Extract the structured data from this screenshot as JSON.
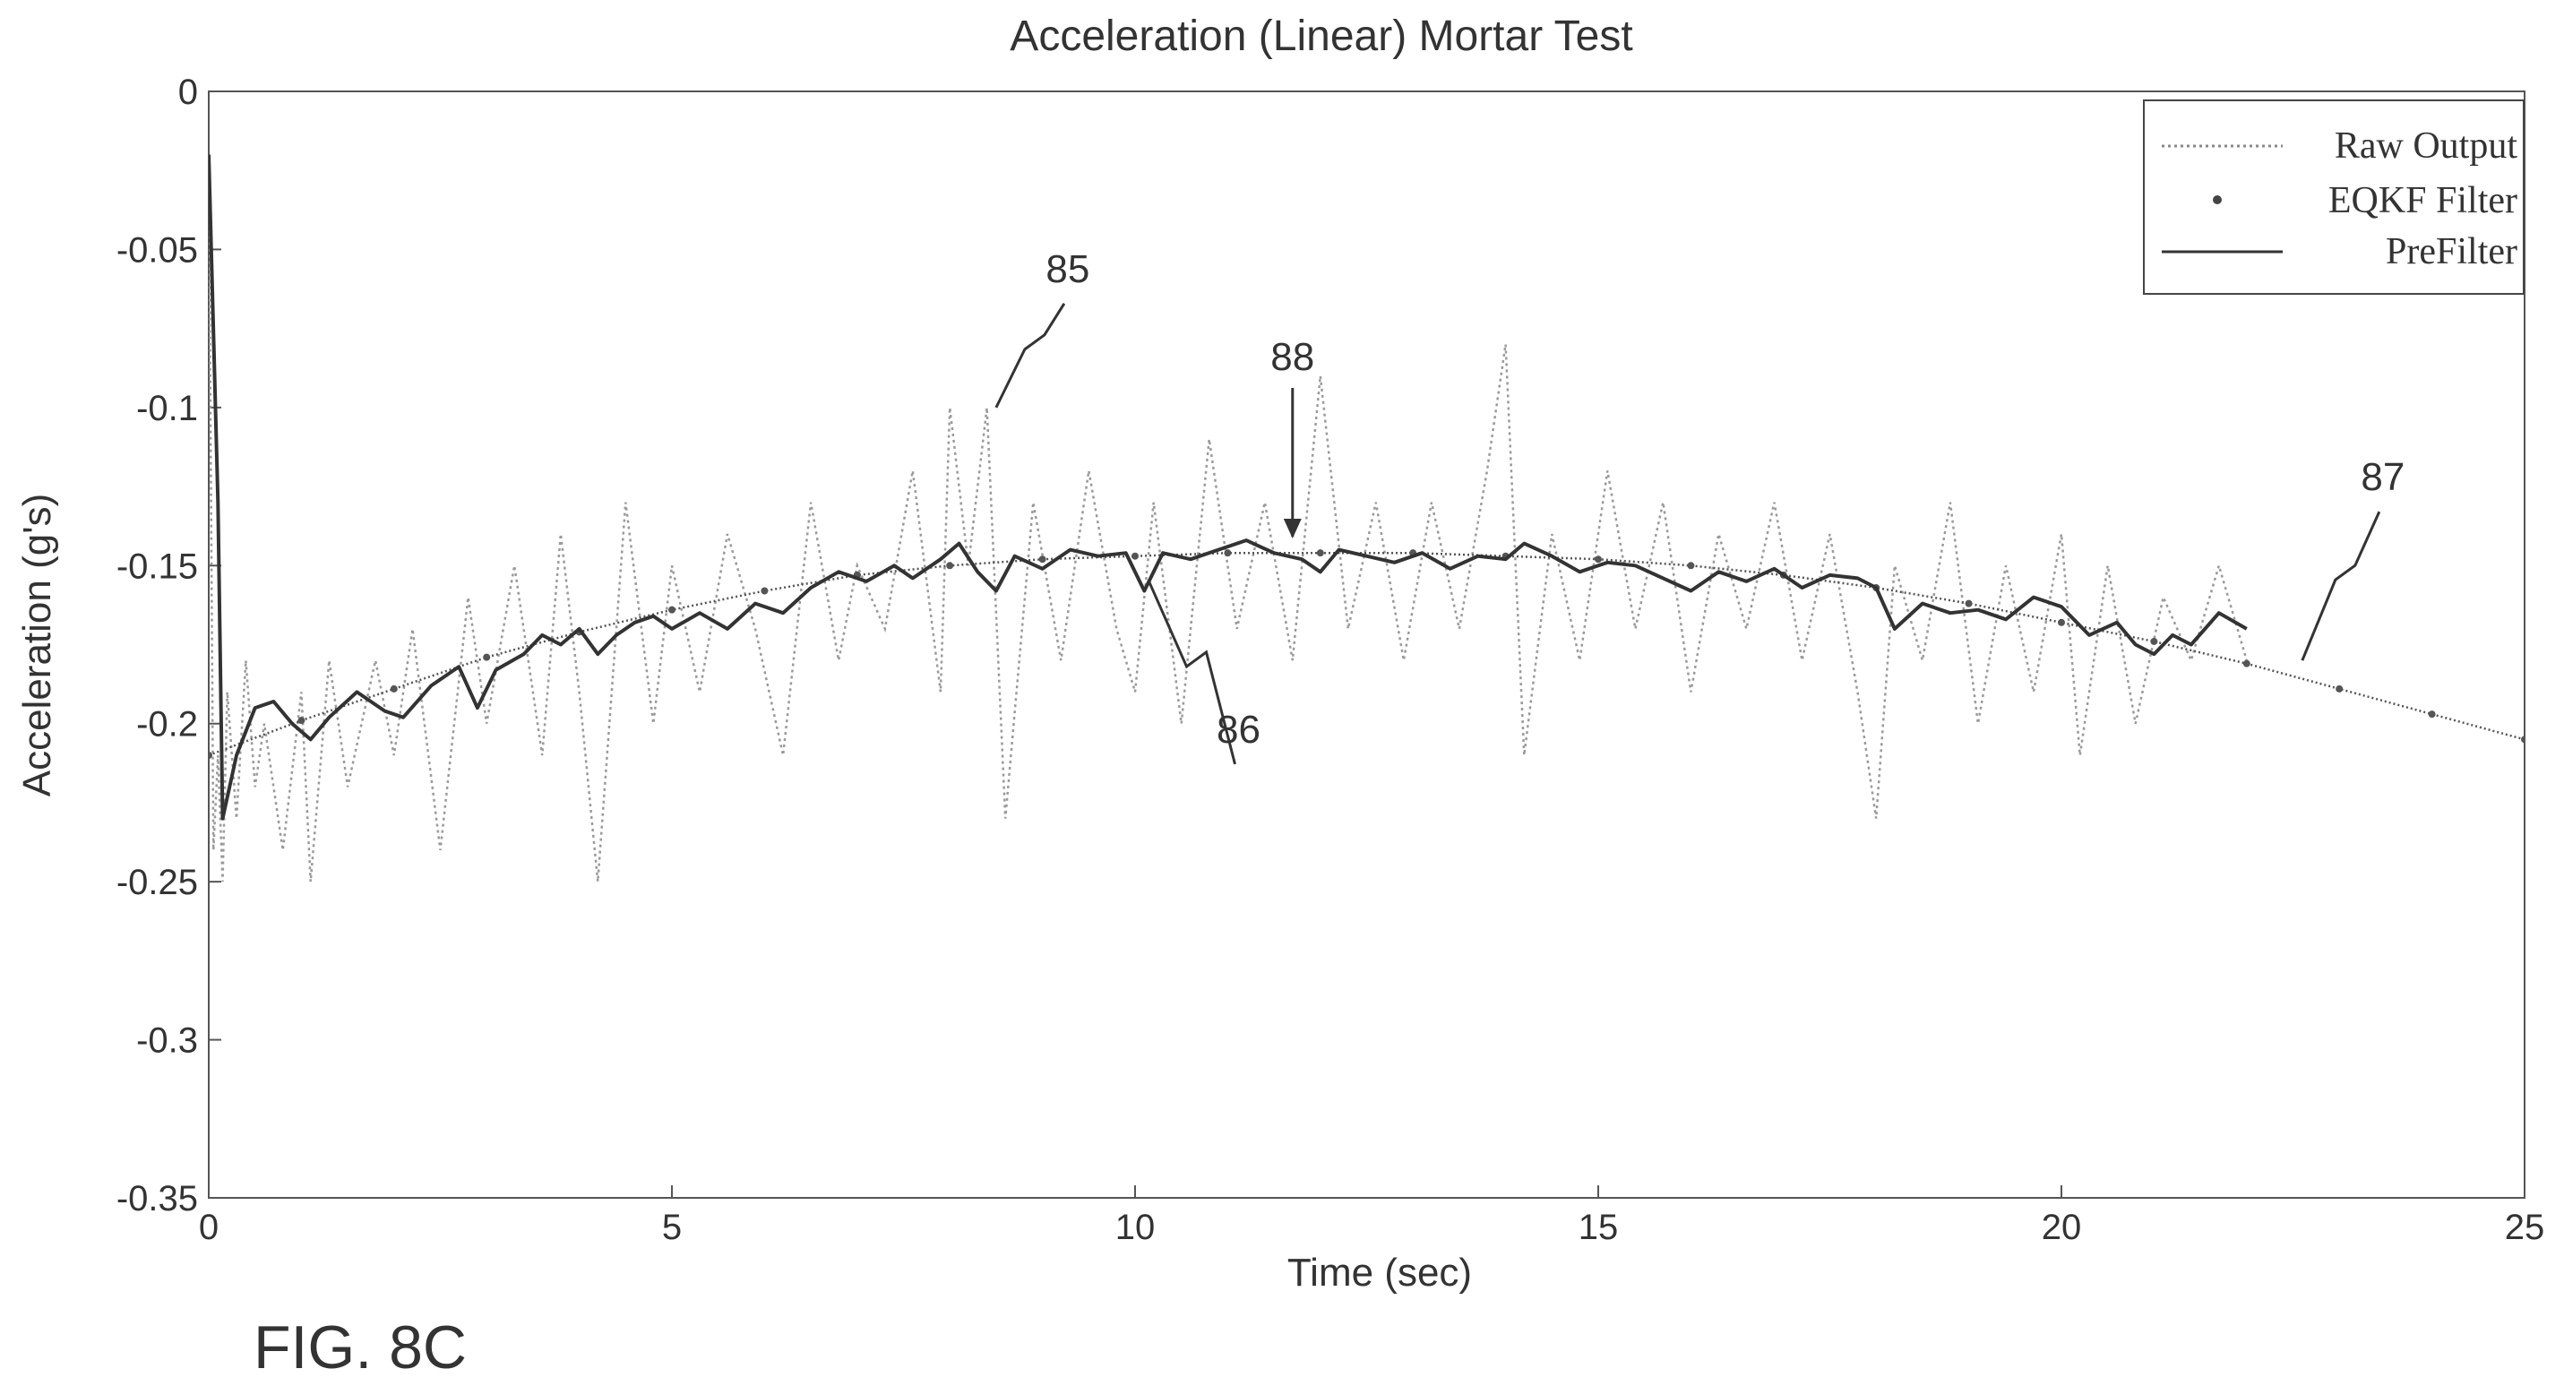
{
  "chart_data": {
    "type": "line",
    "title": "Acceleration (Linear) Mortar Test",
    "xlabel": "Time (sec)",
    "ylabel": "Acceleration (g's)",
    "xlim": [
      0,
      25
    ],
    "ylim": [
      -0.35,
      0
    ],
    "xticks": [
      "0",
      "5",
      "10",
      "15",
      "20",
      "25"
    ],
    "yticks": [
      "0",
      "-0.05",
      "-0.1",
      "-0.15",
      "-0.2",
      "-0.25",
      "-0.3",
      "-0.35"
    ],
    "grid": false,
    "legend_position": "top-right",
    "series": [
      {
        "name": "Raw Output",
        "style": "dotted",
        "color": "#9a9a9a",
        "x": [
          0,
          0.05,
          0.1,
          0.15,
          0.2,
          0.3,
          0.4,
          0.5,
          0.6,
          0.8,
          1.0,
          1.1,
          1.3,
          1.5,
          1.8,
          2.0,
          2.2,
          2.5,
          2.8,
          3.0,
          3.3,
          3.6,
          3.8,
          4.0,
          4.2,
          4.5,
          4.8,
          5.0,
          5.3,
          5.6,
          5.9,
          6.2,
          6.5,
          6.8,
          7.0,
          7.3,
          7.6,
          7.9,
          8.0,
          8.2,
          8.4,
          8.6,
          8.9,
          9.2,
          9.5,
          9.8,
          10.0,
          10.2,
          10.5,
          10.8,
          11.1,
          11.4,
          11.7,
          12.0,
          12.3,
          12.6,
          12.9,
          13.2,
          13.5,
          13.8,
          14.0,
          14.2,
          14.5,
          14.8,
          15.1,
          15.4,
          15.7,
          16.0,
          16.3,
          16.6,
          16.9,
          17.2,
          17.5,
          17.8,
          18.0,
          18.2,
          18.5,
          18.8,
          19.1,
          19.4,
          19.7,
          20.0,
          20.2,
          20.5,
          20.8,
          21.1,
          21.4,
          21.7,
          22.0
        ],
        "values": [
          -0.02,
          -0.24,
          -0.21,
          -0.25,
          -0.19,
          -0.23,
          -0.18,
          -0.22,
          -0.2,
          -0.24,
          -0.19,
          -0.25,
          -0.18,
          -0.22,
          -0.18,
          -0.21,
          -0.17,
          -0.24,
          -0.16,
          -0.2,
          -0.15,
          -0.21,
          -0.14,
          -0.19,
          -0.25,
          -0.13,
          -0.2,
          -0.15,
          -0.19,
          -0.14,
          -0.17,
          -0.21,
          -0.13,
          -0.18,
          -0.15,
          -0.17,
          -0.12,
          -0.19,
          -0.1,
          -0.15,
          -0.1,
          -0.23,
          -0.13,
          -0.18,
          -0.12,
          -0.17,
          -0.19,
          -0.13,
          -0.2,
          -0.11,
          -0.17,
          -0.13,
          -0.18,
          -0.09,
          -0.17,
          -0.13,
          -0.18,
          -0.13,
          -0.17,
          -0.12,
          -0.08,
          -0.21,
          -0.14,
          -0.18,
          -0.12,
          -0.17,
          -0.13,
          -0.19,
          -0.14,
          -0.17,
          -0.13,
          -0.18,
          -0.14,
          -0.19,
          -0.23,
          -0.15,
          -0.18,
          -0.13,
          -0.2,
          -0.15,
          -0.19,
          -0.14,
          -0.21,
          -0.15,
          -0.2,
          -0.16,
          -0.18,
          -0.15,
          -0.18
        ]
      },
      {
        "name": "EQKF Filter",
        "style": "dotted-markers",
        "color": "#555555",
        "x": [
          0,
          1,
          2,
          3,
          4,
          5,
          6,
          7,
          8,
          9,
          10,
          11,
          12,
          13,
          14,
          15,
          16,
          17,
          18,
          19,
          20,
          21,
          22,
          23,
          24,
          25
        ],
        "values": [
          -0.21,
          -0.199,
          -0.189,
          -0.179,
          -0.171,
          -0.164,
          -0.158,
          -0.153,
          -0.15,
          -0.148,
          -0.147,
          -0.146,
          -0.146,
          -0.146,
          -0.147,
          -0.148,
          -0.15,
          -0.153,
          -0.157,
          -0.162,
          -0.168,
          -0.174,
          -0.181,
          -0.189,
          -0.197,
          -0.205
        ]
      },
      {
        "name": "PreFilter",
        "style": "solid",
        "color": "#333333",
        "x": [
          0,
          0.1,
          0.15,
          0.3,
          0.5,
          0.7,
          0.9,
          1.1,
          1.3,
          1.6,
          1.9,
          2.1,
          2.4,
          2.7,
          2.9,
          3.1,
          3.4,
          3.6,
          3.8,
          4.0,
          4.2,
          4.4,
          4.6,
          4.8,
          5.0,
          5.3,
          5.6,
          5.9,
          6.2,
          6.5,
          6.8,
          7.1,
          7.4,
          7.6,
          7.9,
          8.1,
          8.3,
          8.5,
          8.7,
          9.0,
          9.3,
          9.6,
          9.9,
          10.1,
          10.3,
          10.6,
          10.9,
          11.2,
          11.5,
          11.8,
          12.0,
          12.2,
          12.5,
          12.8,
          13.1,
          13.4,
          13.7,
          14.0,
          14.2,
          14.5,
          14.8,
          15.1,
          15.4,
          15.7,
          16.0,
          16.3,
          16.6,
          16.9,
          17.2,
          17.5,
          17.8,
          18.0,
          18.2,
          18.5,
          18.8,
          19.1,
          19.4,
          19.7,
          20.0,
          20.3,
          20.6,
          20.8,
          21.0,
          21.2,
          21.4,
          21.7,
          22.0
        ],
        "values": [
          -0.02,
          -0.13,
          -0.23,
          -0.21,
          -0.195,
          -0.193,
          -0.2,
          -0.205,
          -0.198,
          -0.19,
          -0.196,
          -0.198,
          -0.188,
          -0.182,
          -0.195,
          -0.183,
          -0.178,
          -0.172,
          -0.175,
          -0.17,
          -0.178,
          -0.172,
          -0.168,
          -0.166,
          -0.17,
          -0.165,
          -0.17,
          -0.162,
          -0.165,
          -0.157,
          -0.152,
          -0.155,
          -0.15,
          -0.154,
          -0.148,
          -0.143,
          -0.152,
          -0.158,
          -0.147,
          -0.151,
          -0.145,
          -0.147,
          -0.146,
          -0.158,
          -0.146,
          -0.148,
          -0.145,
          -0.142,
          -0.146,
          -0.148,
          -0.152,
          -0.145,
          -0.147,
          -0.149,
          -0.146,
          -0.151,
          -0.147,
          -0.148,
          -0.143,
          -0.147,
          -0.152,
          -0.149,
          -0.15,
          -0.154,
          -0.158,
          -0.152,
          -0.155,
          -0.151,
          -0.157,
          -0.153,
          -0.154,
          -0.157,
          -0.17,
          -0.162,
          -0.165,
          -0.164,
          -0.167,
          -0.16,
          -0.163,
          -0.172,
          -0.168,
          -0.175,
          -0.178,
          -0.172,
          -0.175,
          -0.165,
          -0.17
        ]
      }
    ],
    "annotations": [
      {
        "label": "85",
        "x": 8.5,
        "y": -0.1
      },
      {
        "label": "88",
        "x": 11.7,
        "y": -0.142
      },
      {
        "label": "86",
        "x": 10.15,
        "y": -0.155
      },
      {
        "label": "87",
        "x": 22.6,
        "y": -0.18
      }
    ]
  },
  "figure_label": "FIG. 8C"
}
